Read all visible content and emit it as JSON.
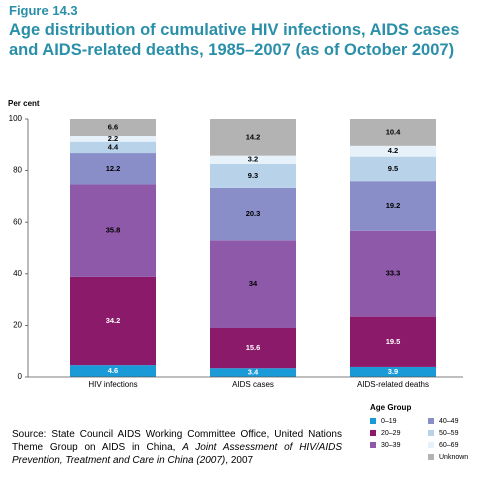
{
  "chart_data": {
    "type": "stacked_bar",
    "figure_label": "Figure 14.3",
    "title": "Age distribution of cumulative HIV infections, AIDS cases and AIDS-related deaths, 1985–2007 (as of October 2007)",
    "y_label": "Per cent",
    "categories": [
      "HIV infections",
      "AIDS cases",
      "AIDS-related deaths"
    ],
    "series": [
      {
        "name": "0–19",
        "color": "#1b9ad8",
        "values": [
          4.6,
          3.4,
          3.9
        ]
      },
      {
        "name": "20–29",
        "color": "#8c1a6b",
        "values": [
          34.2,
          15.6,
          19.5
        ]
      },
      {
        "name": "30–39",
        "color": "#8e59a9",
        "values": [
          35.8,
          34,
          33.3
        ]
      },
      {
        "name": "40–49",
        "color": "#8a8ec8",
        "values": [
          12.2,
          20.3,
          19.2
        ]
      },
      {
        "name": "50–59",
        "color": "#b8d2ea",
        "values": [
          4.4,
          9.3,
          9.5
        ]
      },
      {
        "name": "60–69",
        "color": "#e6f1fa",
        "values": [
          2.2,
          3.2,
          4.2
        ]
      },
      {
        "name": "Unknown",
        "color": "#b3b3b3",
        "values": [
          6.6,
          14.2,
          10.4
        ]
      }
    ],
    "ylim": [
      0,
      100
    ],
    "yticks": [
      0,
      20,
      40,
      60,
      80,
      100
    ],
    "legend_title": "Age Group",
    "source": [
      "Source: State Council AIDS Working Committee Office, United Nations Theme Group on AIDS in China, ",
      "A Joint Assessment of HIV/AIDS Prevention, Treatment and Care in China (2007)",
      ", 2007"
    ]
  }
}
